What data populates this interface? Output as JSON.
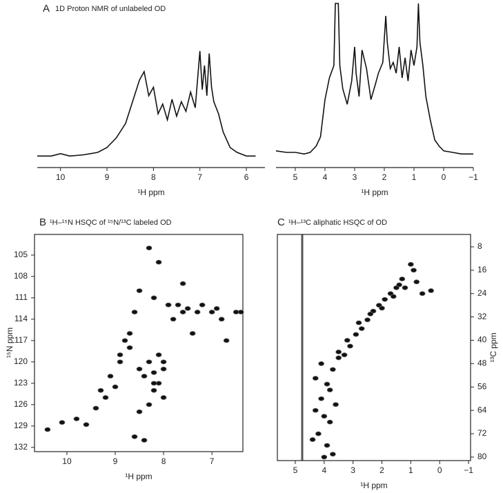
{
  "chart_data": [
    {
      "type": "line",
      "panel": "A",
      "title": "1D Proton NMR of unlabeled OD",
      "xlabel": "¹H ppm",
      "color": "#111111",
      "x": [
        10.5,
        10.2,
        10.0,
        9.8,
        9.5,
        9.2,
        9.0,
        8.8,
        8.6,
        8.45,
        8.3,
        8.2,
        8.1,
        8.0,
        7.9,
        7.8,
        7.7,
        7.6,
        7.5,
        7.4,
        7.3,
        7.2,
        7.1,
        7.0,
        6.95,
        6.9,
        6.85,
        6.8,
        6.75,
        6.7,
        6.6,
        6.5,
        6.35,
        6.2,
        6.0,
        5.8
      ],
      "values": [
        5,
        5,
        7,
        5,
        6,
        8,
        12,
        20,
        32,
        50,
        68,
        75,
        55,
        62,
        40,
        48,
        35,
        52,
        38,
        50,
        42,
        58,
        45,
        92,
        60,
        80,
        55,
        90,
        62,
        50,
        40,
        25,
        12,
        8,
        5,
        5
      ],
      "xlim": [
        10.5,
        5.6
      ],
      "ylim": [
        0,
        100
      ],
      "xticks": [
        10,
        9,
        8,
        7,
        6
      ]
    },
    {
      "type": "line",
      "xlabel": "¹H ppm",
      "color": "#111111",
      "x": [
        5.65,
        5.3,
        5.0,
        4.7,
        4.5,
        4.3,
        4.15,
        4.0,
        3.85,
        3.7,
        3.65,
        3.6,
        3.55,
        3.5,
        3.4,
        3.25,
        3.1,
        3.0,
        2.95,
        2.85,
        2.75,
        2.6,
        2.45,
        2.3,
        2.2,
        2.05,
        1.95,
        1.9,
        1.8,
        1.7,
        1.6,
        1.5,
        1.4,
        1.3,
        1.2,
        1.1,
        1.0,
        0.9,
        0.85,
        0.8,
        0.7,
        0.6,
        0.45,
        0.3,
        0.15,
        0.0,
        -0.3,
        -0.6,
        -1.0
      ],
      "values": [
        5,
        4,
        4,
        3,
        4,
        8,
        14,
        38,
        52,
        60,
        100,
        100,
        100,
        60,
        45,
        35,
        50,
        72,
        55,
        40,
        70,
        58,
        38,
        48,
        55,
        62,
        92,
        75,
        58,
        62,
        55,
        72,
        52,
        65,
        50,
        70,
        60,
        72,
        100,
        75,
        60,
        40,
        25,
        12,
        8,
        5,
        4,
        3,
        3
      ],
      "xlim": [
        5.65,
        -1.0
      ],
      "ylim": [
        0,
        100
      ],
      "xticks": [
        5,
        4,
        3,
        2,
        1,
        0,
        {
          "value": -1,
          "label": "−1"
        }
      ]
    },
    {
      "type": "scatter",
      "panel": "B",
      "title": "¹H–¹⁵N HSQC of ¹⁵N/¹³C labeled OD",
      "xlabel": "¹H ppm",
      "ylabel": "¹⁵N ppm",
      "color": "#111111",
      "x": [
        10.4,
        10.1,
        9.8,
        9.6,
        9.4,
        9.3,
        9.1,
        9.0,
        8.9,
        8.8,
        8.7,
        8.6,
        8.5,
        8.5,
        8.4,
        8.3,
        8.3,
        8.2,
        8.2,
        8.1,
        8.1,
        8.0,
        8.0,
        7.9,
        7.8,
        7.7,
        7.6,
        7.5,
        7.4,
        7.3,
        7.2,
        7.0,
        6.9,
        6.8,
        6.7,
        6.5,
        6.4,
        8.6,
        8.4,
        8.3,
        8.2,
        8.0,
        8.7,
        8.9,
        9.2,
        8.5,
        8.2,
        8.1,
        7.9,
        7.6
      ],
      "values": [
        129.5,
        128.5,
        128,
        128.8,
        126.5,
        124,
        122,
        123.5,
        120,
        117,
        116,
        113,
        121,
        110,
        122,
        120,
        104,
        121.5,
        111,
        123,
        106,
        120,
        125,
        112,
        114,
        112,
        113,
        112.5,
        116,
        113,
        112,
        113,
        112.5,
        114,
        117,
        113,
        113,
        130.5,
        131,
        126,
        124,
        121,
        118,
        119,
        125,
        127,
        123,
        119,
        112,
        109
      ],
      "xlim": [
        10.67,
        6.36
      ],
      "ylim": [
        102.1,
        132.6
      ],
      "xticks": [
        10,
        9,
        8,
        7
      ],
      "yticks": [
        105,
        108,
        111,
        114,
        117,
        120,
        123,
        126,
        129,
        132
      ]
    },
    {
      "type": "scatter",
      "panel": "C",
      "title": "¹H–¹³C aliphatic HSQC of OD",
      "xlabel": "¹H ppm",
      "ylabel": "¹³C ppm",
      "color": "#111111",
      "x": [
        1.0,
        0.9,
        0.8,
        1.3,
        1.5,
        1.7,
        1.9,
        2.1,
        2.3,
        2.5,
        2.7,
        2.9,
        3.1,
        3.3,
        3.5,
        3.7,
        3.9,
        4.1,
        4.3,
        4.0,
        3.8,
        3.6,
        4.2,
        4.4,
        3.9,
        3.7,
        4.0,
        3.8,
        4.3,
        2.0,
        1.6,
        1.2,
        0.6,
        0.3,
        2.8,
        3.2,
        4.1,
        3.5,
        2.4,
        1.4
      ],
      "values": [
        14,
        16,
        20,
        19,
        22,
        24,
        26,
        28,
        30,
        33,
        36,
        38,
        42,
        45,
        46,
        50,
        55,
        60,
        64,
        66,
        68,
        62,
        72,
        74,
        76,
        79,
        80,
        57,
        53,
        29,
        25,
        22,
        24,
        23,
        34,
        40,
        48,
        44,
        31,
        21
      ],
      "xlim": [
        5.62,
        -1.07
      ],
      "ylim": [
        3.75,
        81.2
      ],
      "xticks": [
        5,
        4,
        3,
        2,
        1,
        0,
        {
          "value": -1,
          "label": "−1"
        }
      ],
      "yticks": [
        8,
        16,
        24,
        32,
        40,
        48,
        56,
        64,
        72,
        80
      ]
    }
  ]
}
